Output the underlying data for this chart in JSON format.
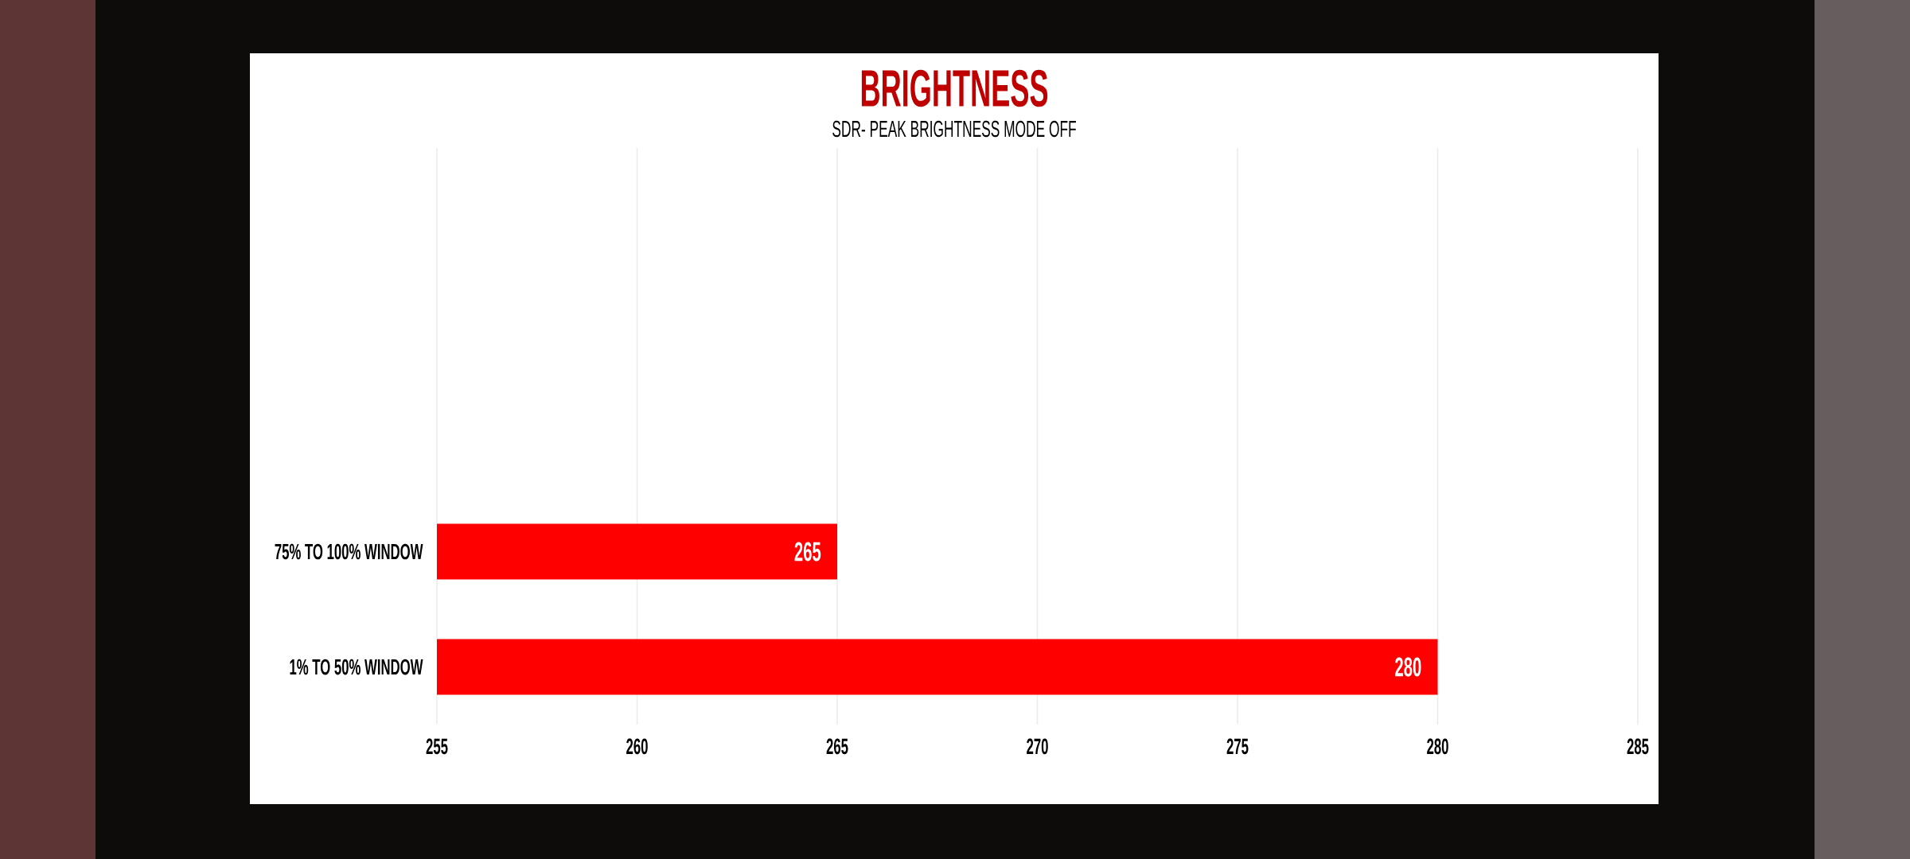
{
  "chart_data": {
    "type": "bar",
    "orientation": "horizontal",
    "title": "BRIGHTNESS",
    "subtitle": "SDR- PEAK BRIGHTNESS MODE OFF",
    "categories": [
      null,
      null,
      null,
      "75% TO 100% WINDOW",
      "1% TO 50% WINDOW"
    ],
    "values": [
      null,
      null,
      null,
      265,
      280
    ],
    "color": "#ff0000",
    "xlim": [
      255,
      285
    ],
    "xticks": [
      255,
      260,
      265,
      270,
      275,
      280,
      285
    ],
    "grid": "x",
    "data_labels": true
  }
}
